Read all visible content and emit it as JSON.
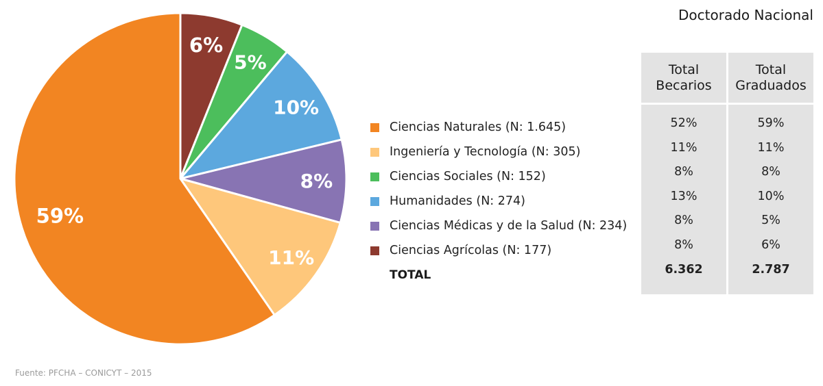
{
  "chart_data": {
    "type": "pie",
    "title": "",
    "slices": [
      {
        "label": "Ciencias Naturales (N: 1.645)",
        "value": 59,
        "display": "59%",
        "color": "#f28522"
      },
      {
        "label": "Ingeniería y Tecnología (N: 305)",
        "value": 11,
        "display": "11%",
        "color": "#fec77b"
      },
      {
        "label": "Ciencias Sociales (N: 152)",
        "value": 5,
        "display": "5%",
        "color": "#4cbe5c"
      },
      {
        "label": "Humanidades (N: 274)",
        "value": 10,
        "display": "10%",
        "color": "#5ca8de"
      },
      {
        "label": "Ciencias Médicas y de la Salud (N: 234)",
        "value": 8,
        "display": "8%",
        "color": "#8874b3"
      },
      {
        "label": "Ciencias Agrícolas (N: 177)",
        "value": 6,
        "display": "6%",
        "color": "#8d3a2f"
      }
    ],
    "legend_placement": "right",
    "legend_total": "TOTAL"
  },
  "table": {
    "title": "Doctorado Nacional",
    "columns": [
      {
        "header_line1": "Total",
        "header_line2": "Becarios",
        "values": [
          "52%",
          "11%",
          "8%",
          "13%",
          "8%",
          "8%"
        ],
        "total": "6.362"
      },
      {
        "header_line1": "Total",
        "header_line2": "Graduados",
        "values": [
          "59%",
          "11%",
          "8%",
          "10%",
          "5%",
          "6%"
        ],
        "total": "2.787"
      }
    ]
  },
  "source": "Fuente: PFCHA – CONICYT – 2015"
}
